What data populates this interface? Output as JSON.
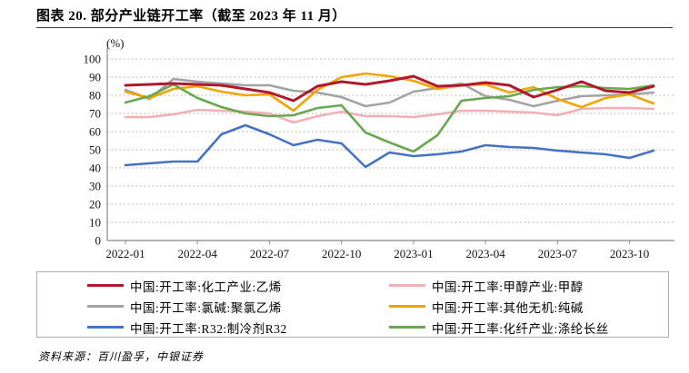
{
  "title": "图表 20. 部分产业链开工率（截至 2023 年 11 月）",
  "source_note": "资料来源：百川盈孚，中银证券",
  "chart_data": {
    "type": "line",
    "unit_label": "(%)",
    "title": "部分产业链开工率（截至 2023 年 11 月）",
    "xlabel": "",
    "ylabel": "(%)",
    "ylim": [
      0,
      100
    ],
    "y_ticks": [
      0,
      10,
      20,
      30,
      40,
      50,
      60,
      70,
      80,
      90,
      100
    ],
    "grid": "horizontal dotted gridlines, light gray",
    "legend_position": "bottom box, two columns",
    "x": [
      "2022-01",
      "2022-02",
      "2022-03",
      "2022-04",
      "2022-05",
      "2022-06",
      "2022-07",
      "2022-08",
      "2022-09",
      "2022-10",
      "2022-11",
      "2022-12",
      "2023-01",
      "2023-02",
      "2023-03",
      "2023-04",
      "2023-05",
      "2023-06",
      "2023-07",
      "2023-08",
      "2023-09",
      "2023-10",
      "2023-11"
    ],
    "x_tick_labels": [
      "2022-01",
      "2022-04",
      "2022-07",
      "2022-10",
      "2023-01",
      "2023-04",
      "2023-07",
      "2023-10"
    ],
    "x_tick_indices": [
      0,
      3,
      6,
      9,
      12,
      15,
      18,
      21
    ],
    "axis_color": "#9a9a9a",
    "gridline_color": "#a8a8a8",
    "series": [
      {
        "name": "中国:开工率:化工产业:乙烯",
        "color": "#B0182C",
        "width": 3,
        "values": [
          85.5,
          86,
          86.5,
          86,
          85.5,
          83.5,
          81.5,
          77,
          85,
          87.5,
          86,
          88,
          90.5,
          85,
          85.5,
          87,
          85.5,
          79,
          83,
          87.5,
          82.5,
          81.5,
          85
        ]
      },
      {
        "name": "中国:开工率:甲醇产业:甲醇",
        "color": "#F3AFB5",
        "width": 2.6,
        "values": [
          68,
          68,
          69.5,
          72,
          71.5,
          71,
          70,
          65,
          68.5,
          71,
          68.5,
          68.5,
          68,
          69.5,
          71.5,
          71.5,
          71,
          70.5,
          69,
          72.5,
          73,
          73,
          72.5
        ]
      },
      {
        "name": "中国:开工率:氯碱:聚氯乙烯",
        "color": "#A3A3A3",
        "width": 2.6,
        "values": [
          83,
          78,
          89,
          87.5,
          86.5,
          85.5,
          85.5,
          82.5,
          81.5,
          79,
          74,
          76,
          82,
          84,
          86.5,
          79.5,
          77.5,
          74,
          77,
          79.5,
          80,
          80.5,
          81.5
        ]
      },
      {
        "name": "中国:开工率:其他无机:纯碱",
        "color": "#F0A500",
        "width": 2.6,
        "values": [
          82,
          78.5,
          83.5,
          85,
          82,
          80,
          80.5,
          71.5,
          83,
          90,
          92,
          90.5,
          88,
          83.5,
          85.5,
          86,
          81.5,
          84.5,
          78,
          73.5,
          78.5,
          80.5,
          75.5
        ]
      },
      {
        "name": "中国:开工率:R32:制冷剂R32",
        "color": "#4472C4",
        "width": 2.6,
        "values": [
          41.5,
          42.5,
          43.5,
          43.5,
          58.5,
          63.5,
          58.5,
          52.5,
          55.5,
          53.5,
          40.5,
          48.5,
          46.5,
          47.5,
          49,
          52.5,
          51.5,
          51,
          49.5,
          48.5,
          47.5,
          45.5,
          49.5
        ]
      },
      {
        "name": "中国:开工率:化纤产业:涤纶长丝",
        "color": "#6AA84F",
        "width": 2.6,
        "values": [
          76,
          79.5,
          86,
          78.5,
          73.5,
          70,
          68.5,
          69,
          73,
          74.5,
          59.5,
          54,
          49,
          58,
          77,
          78.5,
          79.5,
          83,
          84.5,
          85,
          84,
          83.5,
          85.5
        ]
      }
    ],
    "draw_order": [
      1,
      2,
      3,
      5,
      4,
      0
    ]
  }
}
